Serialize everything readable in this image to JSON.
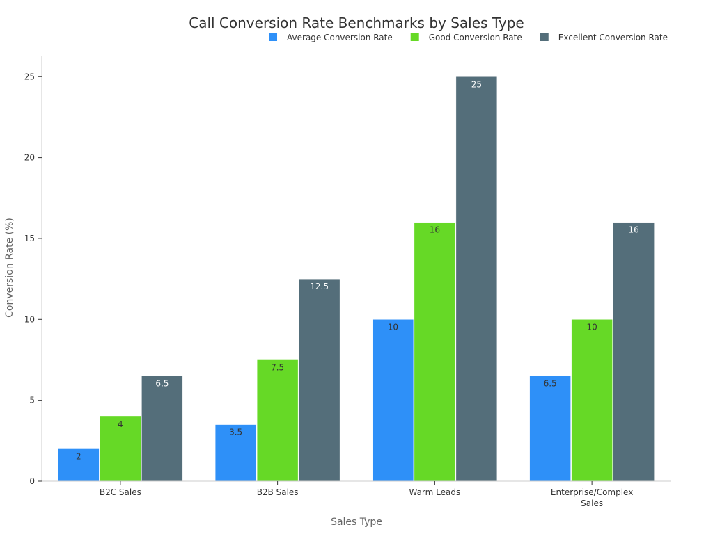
{
  "chart_data": {
    "type": "bar",
    "title": "Call Conversion Rate Benchmarks by Sales Type",
    "xlabel": "Sales Type",
    "ylabel": "Conversion Rate (%)",
    "categories": [
      [
        "B2C Sales"
      ],
      [
        "B2B Sales"
      ],
      [
        "Warm Leads"
      ],
      [
        "Enterprise/Complex",
        "Sales"
      ]
    ],
    "series": [
      {
        "name": "Average Conversion Rate",
        "color": "#2e90f8",
        "label_color": "#333333",
        "values": [
          2,
          3.5,
          10,
          6.5
        ]
      },
      {
        "name": "Good Conversion Rate",
        "color": "#66d926",
        "label_color": "#333333",
        "values": [
          4,
          7.5,
          16,
          10
        ]
      },
      {
        "name": "Excellent Conversion Rate",
        "color": "#546e7a",
        "label_color": "#ffffff",
        "values": [
          6.5,
          12.5,
          25,
          16
        ]
      }
    ],
    "ylim": [
      0,
      26.3
    ],
    "yticks": [
      0,
      5,
      10,
      15,
      20,
      25
    ],
    "grid": false,
    "legend_position": "top-right"
  }
}
